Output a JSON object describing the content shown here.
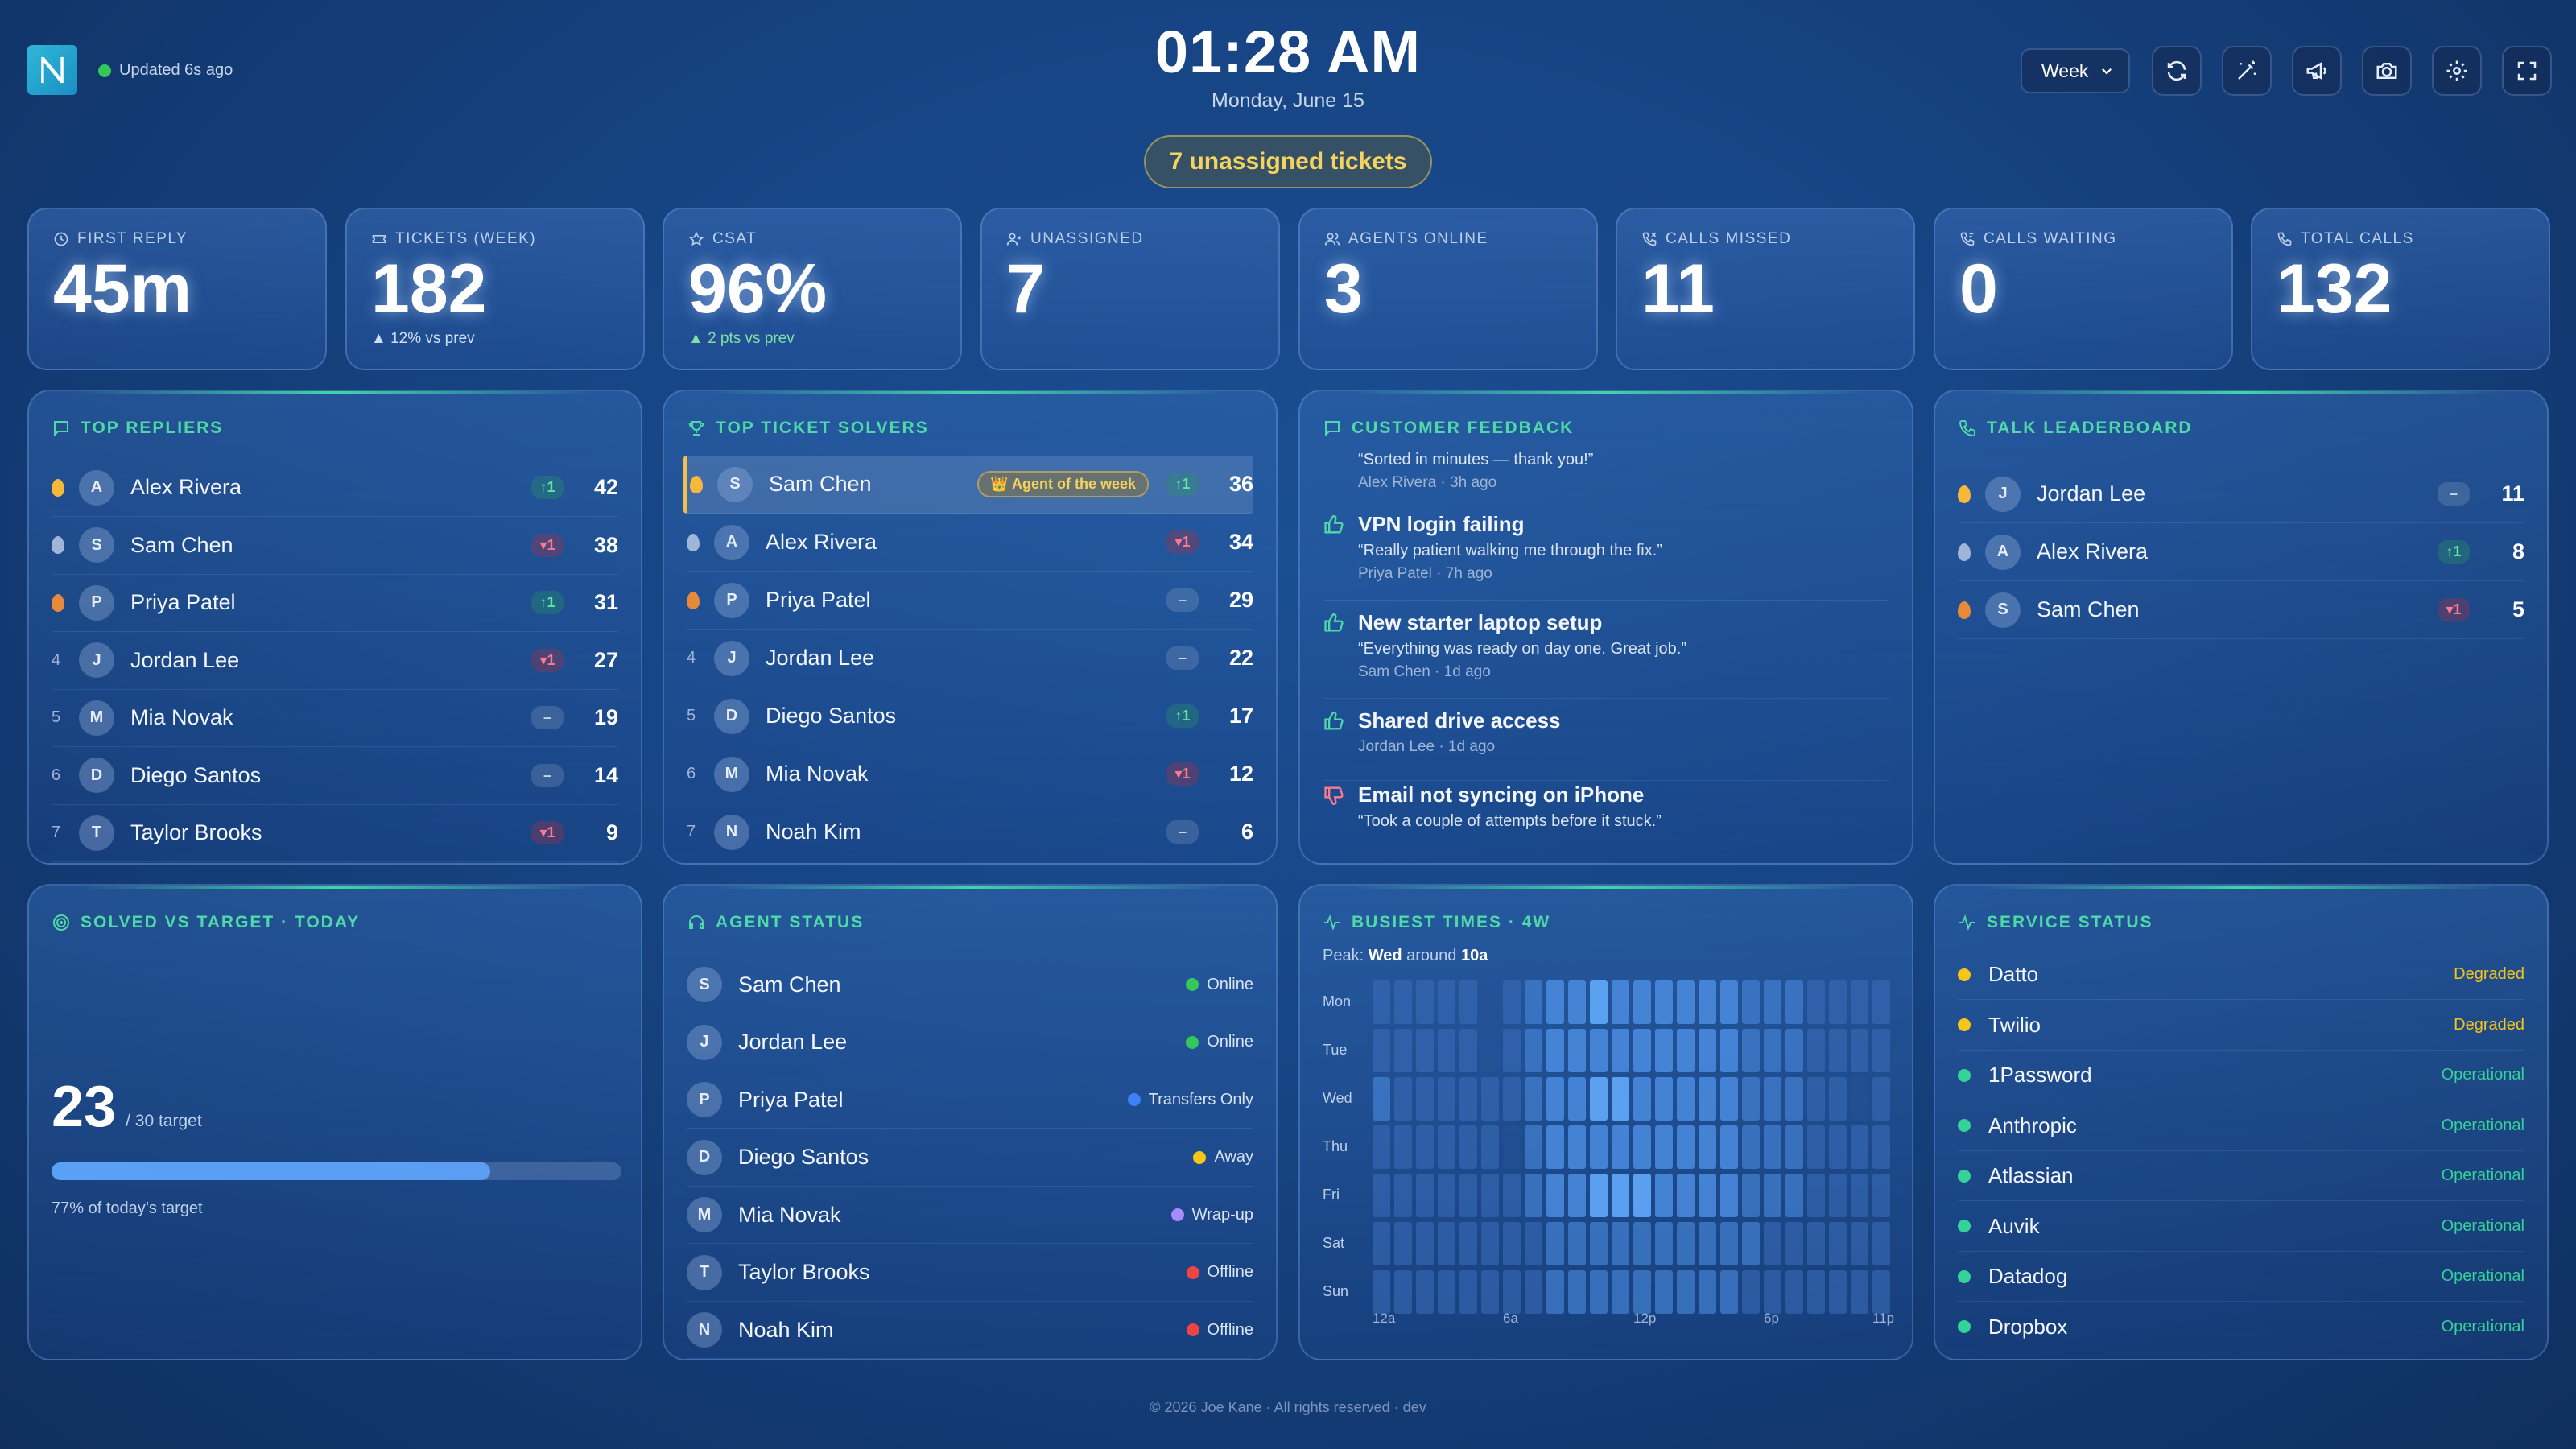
{
  "header": {
    "updated": "Updated 6s ago",
    "clock": "01:28 AM",
    "date": "Monday, June 15",
    "unassigned_pill": "7 unassigned tickets",
    "range_select": "Week",
    "buttons": [
      "refresh-icon",
      "magic-wand-icon",
      "megaphone-icon",
      "camera-icon",
      "gear-icon",
      "fullscreen-icon"
    ]
  },
  "kpis": [
    {
      "label": "FIRST REPLY",
      "value": "45m",
      "sub": "",
      "icon": "clock-icon"
    },
    {
      "label": "TICKETS (WEEK)",
      "value": "182",
      "sub": "▲ 12% vs prev",
      "icon": "ticket-icon"
    },
    {
      "label": "CSAT",
      "value": "96%",
      "sub": "▲ 2 pts vs prev",
      "icon": "star-icon"
    },
    {
      "label": "UNASSIGNED",
      "value": "7",
      "sub": "",
      "icon": "user-x-icon"
    },
    {
      "label": "AGENTS ONLINE",
      "value": "3",
      "sub": "",
      "icon": "users-icon"
    },
    {
      "label": "CALLS MISSED",
      "value": "11",
      "sub": "",
      "icon": "phone-missed-icon"
    },
    {
      "label": "CALLS WAITING",
      "value": "0",
      "sub": "",
      "icon": "phone-waiting-icon"
    },
    {
      "label": "TOTAL CALLS",
      "value": "132",
      "sub": "",
      "icon": "phone-icon"
    }
  ],
  "top_repliers": {
    "title": "TOP REPLIERS",
    "rows": [
      {
        "rank": "",
        "medal": "gold",
        "initial": "A",
        "name": "Alex Rivera",
        "delta": "↑1",
        "dir": "up",
        "score": "42"
      },
      {
        "rank": "",
        "medal": "silver",
        "initial": "S",
        "name": "Sam Chen",
        "delta": "▾1",
        "dir": "down",
        "score": "38"
      },
      {
        "rank": "",
        "medal": "bronze",
        "initial": "P",
        "name": "Priya Patel",
        "delta": "↑1",
        "dir": "up",
        "score": "31"
      },
      {
        "rank": "4",
        "medal": "",
        "initial": "J",
        "name": "Jordan Lee",
        "delta": "▾1",
        "dir": "down",
        "score": "27"
      },
      {
        "rank": "5",
        "medal": "",
        "initial": "M",
        "name": "Mia Novak",
        "delta": "–",
        "dir": "flat",
        "score": "19"
      },
      {
        "rank": "6",
        "medal": "",
        "initial": "D",
        "name": "Diego Santos",
        "delta": "–",
        "dir": "flat",
        "score": "14"
      },
      {
        "rank": "7",
        "medal": "",
        "initial": "T",
        "name": "Taylor Brooks",
        "delta": "▾1",
        "dir": "down",
        "score": "9"
      }
    ]
  },
  "top_solvers": {
    "title": "TOP TICKET SOLVERS",
    "agent_of_week": "👑 Agent of the week",
    "rows": [
      {
        "rank": "",
        "medal": "gold",
        "initial": "S",
        "name": "Sam Chen",
        "delta": "↑1",
        "dir": "up",
        "score": "36"
      },
      {
        "rank": "",
        "medal": "silver",
        "initial": "A",
        "name": "Alex Rivera",
        "delta": "▾1",
        "dir": "down",
        "score": "34"
      },
      {
        "rank": "",
        "medal": "bronze",
        "initial": "P",
        "name": "Priya Patel",
        "delta": "–",
        "dir": "flat",
        "score": "29"
      },
      {
        "rank": "4",
        "medal": "",
        "initial": "J",
        "name": "Jordan Lee",
        "delta": "–",
        "dir": "flat",
        "score": "22"
      },
      {
        "rank": "5",
        "medal": "",
        "initial": "D",
        "name": "Diego Santos",
        "delta": "↑1",
        "dir": "up",
        "score": "17"
      },
      {
        "rank": "6",
        "medal": "",
        "initial": "M",
        "name": "Mia Novak",
        "delta": "▾1",
        "dir": "down",
        "score": "12"
      },
      {
        "rank": "7",
        "medal": "",
        "initial": "N",
        "name": "Noah Kim",
        "delta": "–",
        "dir": "flat",
        "score": "6"
      }
    ]
  },
  "feedback": {
    "title": "CUSTOMER FEEDBACK",
    "items": [
      {
        "type": "none",
        "title": "",
        "quote": "“Sorted in minutes — thank you!”",
        "meta": "Alex Rivera · 3h ago"
      },
      {
        "type": "up",
        "title": "VPN login failing",
        "quote": "“Really patient walking me through the fix.”",
        "meta": "Priya Patel · 7h ago"
      },
      {
        "type": "up",
        "title": "New starter laptop setup",
        "quote": "“Everything was ready on day one. Great job.”",
        "meta": "Sam Chen · 1d ago"
      },
      {
        "type": "up",
        "title": "Shared drive access",
        "quote": "",
        "meta": "Jordan Lee · 1d ago"
      },
      {
        "type": "down",
        "title": "Email not syncing on iPhone",
        "quote": "“Took a couple of attempts before it stuck.”",
        "meta": ""
      }
    ]
  },
  "talk": {
    "title": "TALK LEADERBOARD",
    "rows": [
      {
        "medal": "gold",
        "initial": "J",
        "name": "Jordan Lee",
        "delta": "–",
        "dir": "flat",
        "score": "11"
      },
      {
        "medal": "silver",
        "initial": "A",
        "name": "Alex Rivera",
        "delta": "↑1",
        "dir": "up",
        "score": "8"
      },
      {
        "medal": "bronze",
        "initial": "S",
        "name": "Sam Chen",
        "delta": "▾1",
        "dir": "down",
        "score": "5"
      }
    ]
  },
  "solved": {
    "title": "SOLVED VS TARGET · TODAY",
    "value": "23",
    "target": "/ 30 target",
    "progress": 0.77,
    "caption": "77% of today’s target"
  },
  "agent_status": {
    "title": "AGENT STATUS",
    "rows": [
      {
        "initial": "S",
        "name": "Sam Chen",
        "status": "Online",
        "color": "#34c759"
      },
      {
        "initial": "J",
        "name": "Jordan Lee",
        "status": "Online",
        "color": "#34c759"
      },
      {
        "initial": "P",
        "name": "Priya Patel",
        "status": "Transfers Only",
        "color": "#3b82f6"
      },
      {
        "initial": "D",
        "name": "Diego Santos",
        "status": "Away",
        "color": "#f5c518"
      },
      {
        "initial": "M",
        "name": "Mia Novak",
        "status": "Wrap-up",
        "color": "#a78bfa"
      },
      {
        "initial": "T",
        "name": "Taylor Brooks",
        "status": "Offline",
        "color": "#ef4444"
      },
      {
        "initial": "N",
        "name": "Noah Kim",
        "status": "Offline",
        "color": "#ef4444"
      }
    ]
  },
  "busiest": {
    "title": "BUSIEST TIMES · 4W",
    "peak_prefix": "Peak: ",
    "peak_day": "Wed",
    "peak_mid": " around ",
    "peak_hour": "10a",
    "days": [
      "Mon",
      "Tue",
      "Wed",
      "Thu",
      "Fri",
      "Sat",
      "Sun"
    ],
    "hour_labels": [
      "12a",
      "6a",
      "12p",
      "6p",
      "11p"
    ],
    "matrix": [
      [
        1,
        1,
        1,
        1,
        1,
        0,
        1,
        2,
        3,
        3,
        4,
        3,
        3,
        3,
        3,
        3,
        3,
        2,
        2,
        2,
        1,
        1,
        1,
        1
      ],
      [
        1,
        1,
        1,
        1,
        1,
        0,
        1,
        2,
        3,
        3,
        3,
        3,
        3,
        3,
        3,
        3,
        3,
        2,
        2,
        2,
        1,
        1,
        1,
        1
      ],
      [
        2,
        1,
        1,
        1,
        1,
        1,
        1,
        2,
        3,
        3,
        4,
        4,
        3,
        3,
        3,
        3,
        3,
        2,
        2,
        2,
        1,
        1,
        0,
        1
      ],
      [
        1,
        1,
        1,
        1,
        1,
        1,
        0,
        2,
        3,
        3,
        3,
        3,
        3,
        3,
        3,
        3,
        3,
        2,
        2,
        2,
        1,
        1,
        1,
        1
      ],
      [
        1,
        1,
        1,
        1,
        1,
        1,
        1,
        2,
        3,
        3,
        4,
        4,
        4,
        3,
        3,
        3,
        3,
        2,
        2,
        2,
        1,
        1,
        1,
        1
      ],
      [
        1,
        1,
        1,
        1,
        1,
        1,
        1,
        1,
        2,
        2,
        2,
        2,
        2,
        2,
        2,
        2,
        2,
        2,
        1,
        1,
        1,
        1,
        1,
        1
      ],
      [
        1,
        1,
        1,
        1,
        1,
        1,
        1,
        1,
        2,
        2,
        2,
        2,
        2,
        2,
        2,
        2,
        2,
        1,
        1,
        1,
        1,
        1,
        1,
        1
      ]
    ]
  },
  "services": {
    "title": "SERVICE STATUS",
    "rows": [
      {
        "name": "Datto",
        "status": "Degraded",
        "color": "#f5c518"
      },
      {
        "name": "Twilio",
        "status": "Degraded",
        "color": "#f5c518"
      },
      {
        "name": "1Password",
        "status": "Operational",
        "color": "#34d399"
      },
      {
        "name": "Anthropic",
        "status": "Operational",
        "color": "#34d399"
      },
      {
        "name": "Atlassian",
        "status": "Operational",
        "color": "#34d399"
      },
      {
        "name": "Auvik",
        "status": "Operational",
        "color": "#34d399"
      },
      {
        "name": "Datadog",
        "status": "Operational",
        "color": "#34d399"
      },
      {
        "name": "Dropbox",
        "status": "Operational",
        "color": "#34d399"
      }
    ]
  },
  "footer": "© 2026 Joe Kane · All rights reserved · dev",
  "colors": {
    "accent": "#4fd8a8",
    "gold": "#f4d35e",
    "bg": "#174585"
  }
}
